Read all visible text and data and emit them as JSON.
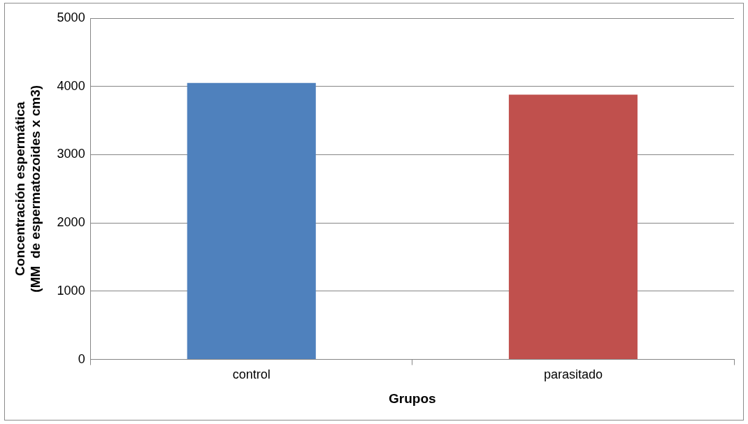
{
  "chart_data": {
    "type": "bar",
    "xlabel": "Grupos",
    "ylabel": "Concentración espermática\n(MM  de espermatozoides x cm3)",
    "categories": [
      "control",
      "parasitado"
    ],
    "values": [
      4050,
      3880
    ],
    "colors": [
      "#4f81bd",
      "#c0504d"
    ],
    "ylim": [
      0,
      5000
    ],
    "yticks": [
      0,
      1000,
      2000,
      3000,
      4000,
      5000
    ],
    "grid": "y",
    "legend": false
  }
}
